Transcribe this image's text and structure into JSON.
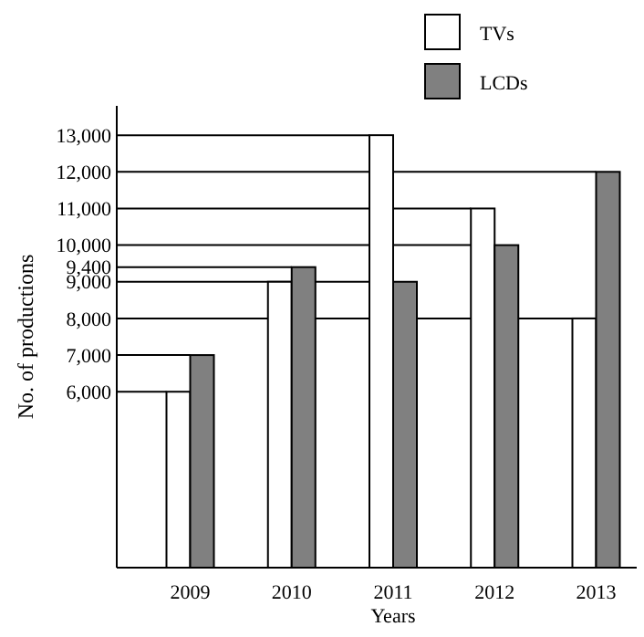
{
  "chart_data": {
    "type": "bar",
    "xlabel": "Years",
    "ylabel": "No. of productions",
    "categories": [
      "2009",
      "2010",
      "2011",
      "2012",
      "2013"
    ],
    "series": [
      {
        "name": "TVs",
        "color": "#ffffff",
        "values": [
          6000,
          9000,
          13000,
          11000,
          8000
        ]
      },
      {
        "name": "LCDs",
        "color": "#808080",
        "values": [
          7000,
          9400,
          9000,
          10000,
          12000
        ]
      }
    ],
    "ylim": [
      1200,
      13800
    ],
    "yticks": [
      {
        "value": 6000,
        "label": "6,000"
      },
      {
        "value": 7000,
        "label": "7,000"
      },
      {
        "value": 8000,
        "label": "8,000"
      },
      {
        "value": 9000,
        "label": "9,000"
      },
      {
        "value": 9400,
        "label": "9,400"
      },
      {
        "value": 10000,
        "label": "10,000"
      },
      {
        "value": 11000,
        "label": "11,000"
      },
      {
        "value": 12000,
        "label": "12,000"
      },
      {
        "value": 13000,
        "label": "13,000"
      }
    ],
    "ref_lines": [
      {
        "axis": "y",
        "value": 6000
      },
      {
        "axis": "y",
        "value": 7000
      },
      {
        "axis": "y",
        "value": 8000
      },
      {
        "axis": "y",
        "value": 9000
      },
      {
        "axis": "y",
        "value": 9400
      },
      {
        "axis": "y",
        "value": 10000
      },
      {
        "axis": "y",
        "value": 11000
      },
      {
        "axis": "y",
        "value": 12000
      },
      {
        "axis": "y",
        "value": 13000
      }
    ],
    "legend": "top right"
  }
}
